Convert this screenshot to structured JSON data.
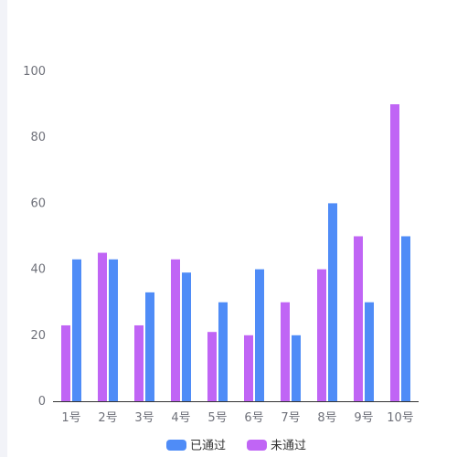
{
  "chart_data": {
    "type": "bar",
    "categories": [
      "1号",
      "2号",
      "3号",
      "4号",
      "5号",
      "6号",
      "7号",
      "8号",
      "9号",
      "10号"
    ],
    "series": [
      {
        "name": "未通过",
        "color": "#c065f5",
        "values": [
          23,
          45,
          23,
          43,
          21,
          20,
          30,
          40,
          50,
          90
        ]
      },
      {
        "name": "已通过",
        "color": "#4f8cf7",
        "values": [
          43,
          43,
          33,
          39,
          30,
          40,
          20,
          60,
          30,
          50
        ]
      }
    ],
    "title": "",
    "xlabel": "",
    "ylabel": "",
    "ylim": [
      0,
      100
    ],
    "yticks": [
      0,
      20,
      40,
      60,
      80,
      100
    ],
    "grid": false,
    "legend": {
      "placement": "bottom-center",
      "items": [
        {
          "name": "已通过",
          "color": "#4f8cf7"
        },
        {
          "name": "未通过",
          "color": "#c065f5"
        }
      ]
    }
  }
}
